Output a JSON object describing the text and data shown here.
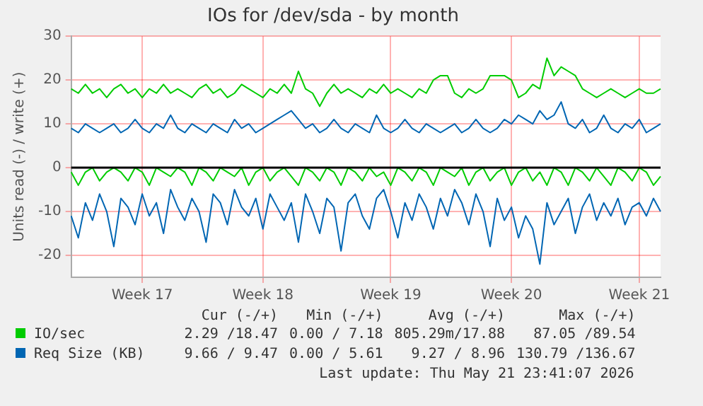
{
  "chart_data": {
    "type": "line",
    "title": "IOs for /dev/sda - by month",
    "ylabel": "Units read (-) / write (+)",
    "categories": [
      null,
      null,
      null,
      null,
      null,
      null,
      null,
      null,
      null,
      null,
      "Week 17",
      null,
      null,
      null,
      null,
      null,
      null,
      null,
      null,
      null,
      null,
      null,
      null,
      null,
      null,
      null,
      null,
      "Week 18",
      null,
      null,
      null,
      null,
      null,
      null,
      null,
      null,
      null,
      null,
      null,
      null,
      null,
      null,
      null,
      null,
      null,
      "Week 19",
      null,
      null,
      null,
      null,
      null,
      null,
      null,
      null,
      null,
      null,
      null,
      null,
      null,
      null,
      null,
      null,
      "Week 20",
      null,
      null,
      null,
      null,
      null,
      null,
      null,
      null,
      null,
      null,
      null,
      null,
      null,
      null,
      null,
      null,
      null,
      "Week 21",
      null,
      null,
      null
    ],
    "series": [
      {
        "name": "IO/sec",
        "color": "#00cc00",
        "values": [
          18,
          17,
          19,
          17,
          18,
          16,
          18,
          19,
          17,
          18,
          16,
          18,
          17,
          19,
          17,
          18,
          17,
          16,
          18,
          19,
          17,
          18,
          16,
          17,
          19,
          18,
          17,
          16,
          18,
          17,
          19,
          17,
          22,
          18,
          17,
          14,
          17,
          19,
          17,
          18,
          17,
          16,
          18,
          17,
          19,
          17,
          18,
          17,
          16,
          18,
          17,
          20,
          21,
          21,
          17,
          16,
          18,
          17,
          18,
          21,
          21,
          21,
          20,
          16,
          17,
          19,
          18,
          25,
          21,
          23,
          22,
          21,
          18,
          17,
          16,
          17,
          18,
          17,
          16,
          17,
          18,
          17,
          17,
          18
        ]
      },
      {
        "color": "#00cc00",
        "values": [
          -1,
          -4,
          -1,
          0,
          -3,
          -1,
          0,
          -1,
          -3,
          0,
          -1,
          -4,
          0,
          -1,
          -2,
          0,
          -1,
          -4,
          0,
          -1,
          -3,
          0,
          -1,
          -2,
          0,
          -4,
          -1,
          0,
          -3,
          -1,
          0,
          -2,
          -4,
          0,
          -1,
          -3,
          0,
          -1,
          -4,
          0,
          -1,
          -3,
          0,
          -2,
          -1,
          -4,
          0,
          -1,
          -3,
          0,
          -1,
          -4,
          0,
          -1,
          -2,
          0,
          -4,
          -1,
          0,
          -3,
          -1,
          0,
          -4,
          -1,
          0,
          -3,
          -1,
          -4,
          0,
          -1,
          -4,
          0,
          -1,
          -3,
          0,
          -2,
          -4,
          0,
          -1,
          -3,
          0,
          -1,
          -4,
          -2
        ]
      },
      {
        "name": "Req Size (KB)",
        "color": "#0066b3",
        "values": [
          9,
          8,
          10,
          9,
          8,
          9,
          10,
          8,
          9,
          11,
          9,
          8,
          10,
          9,
          12,
          9,
          8,
          10,
          9,
          8,
          10,
          9,
          8,
          11,
          9,
          10,
          8,
          9,
          10,
          11,
          12,
          13,
          11,
          9,
          10,
          8,
          9,
          11,
          9,
          8,
          10,
          9,
          8,
          12,
          9,
          8,
          9,
          11,
          9,
          8,
          10,
          9,
          8,
          9,
          10,
          8,
          9,
          11,
          9,
          8,
          9,
          11,
          10,
          12,
          11,
          10,
          13,
          11,
          12,
          15,
          10,
          9,
          11,
          8,
          9,
          12,
          9,
          8,
          10,
          9,
          11,
          8,
          9,
          10
        ]
      },
      {
        "color": "#0066b3",
        "values": [
          -11,
          -16,
          -8,
          -12,
          -6,
          -10,
          -18,
          -7,
          -9,
          -13,
          -6,
          -11,
          -8,
          -15,
          -5,
          -9,
          -12,
          -7,
          -10,
          -17,
          -6,
          -8,
          -13,
          -5,
          -9,
          -11,
          -7,
          -14,
          -6,
          -9,
          -12,
          -8,
          -17,
          -6,
          -10,
          -15,
          -7,
          -9,
          -19,
          -8,
          -6,
          -11,
          -14,
          -7,
          -5,
          -10,
          -16,
          -8,
          -12,
          -6,
          -9,
          -14,
          -7,
          -11,
          -5,
          -8,
          -13,
          -6,
          -10,
          -18,
          -7,
          -12,
          -9,
          -16,
          -11,
          -14,
          -22,
          -8,
          -13,
          -10,
          -7,
          -15,
          -9,
          -6,
          -12,
          -8,
          -11,
          -7,
          -13,
          -9,
          -8,
          -11,
          -7,
          -10
        ]
      }
    ],
    "ylim": [
      -25,
      30
    ],
    "yticks": [
      -20,
      -10,
      0,
      10,
      20,
      30
    ],
    "ref_lines": [
      {
        "axis": "y",
        "value": 0,
        "color": "#000000"
      }
    ],
    "grid": true,
    "legend": "bottom",
    "marker": "none",
    "line_style": "solid",
    "annotations": [
      "Cur (-/+)",
      "Min (-/+)",
      "Avg (-/+)",
      "Max (-/+)",
      "2.29 /18.47",
      "0.00 / 7.18",
      "805.29m/17.88",
      "87.05 /89.54",
      "9.66 / 9.47",
      "0.00 / 5.61",
      "9.27 / 8.96",
      "130.79 /136.67",
      "Last update: Thu May 21 23:41:07 2026"
    ]
  }
}
